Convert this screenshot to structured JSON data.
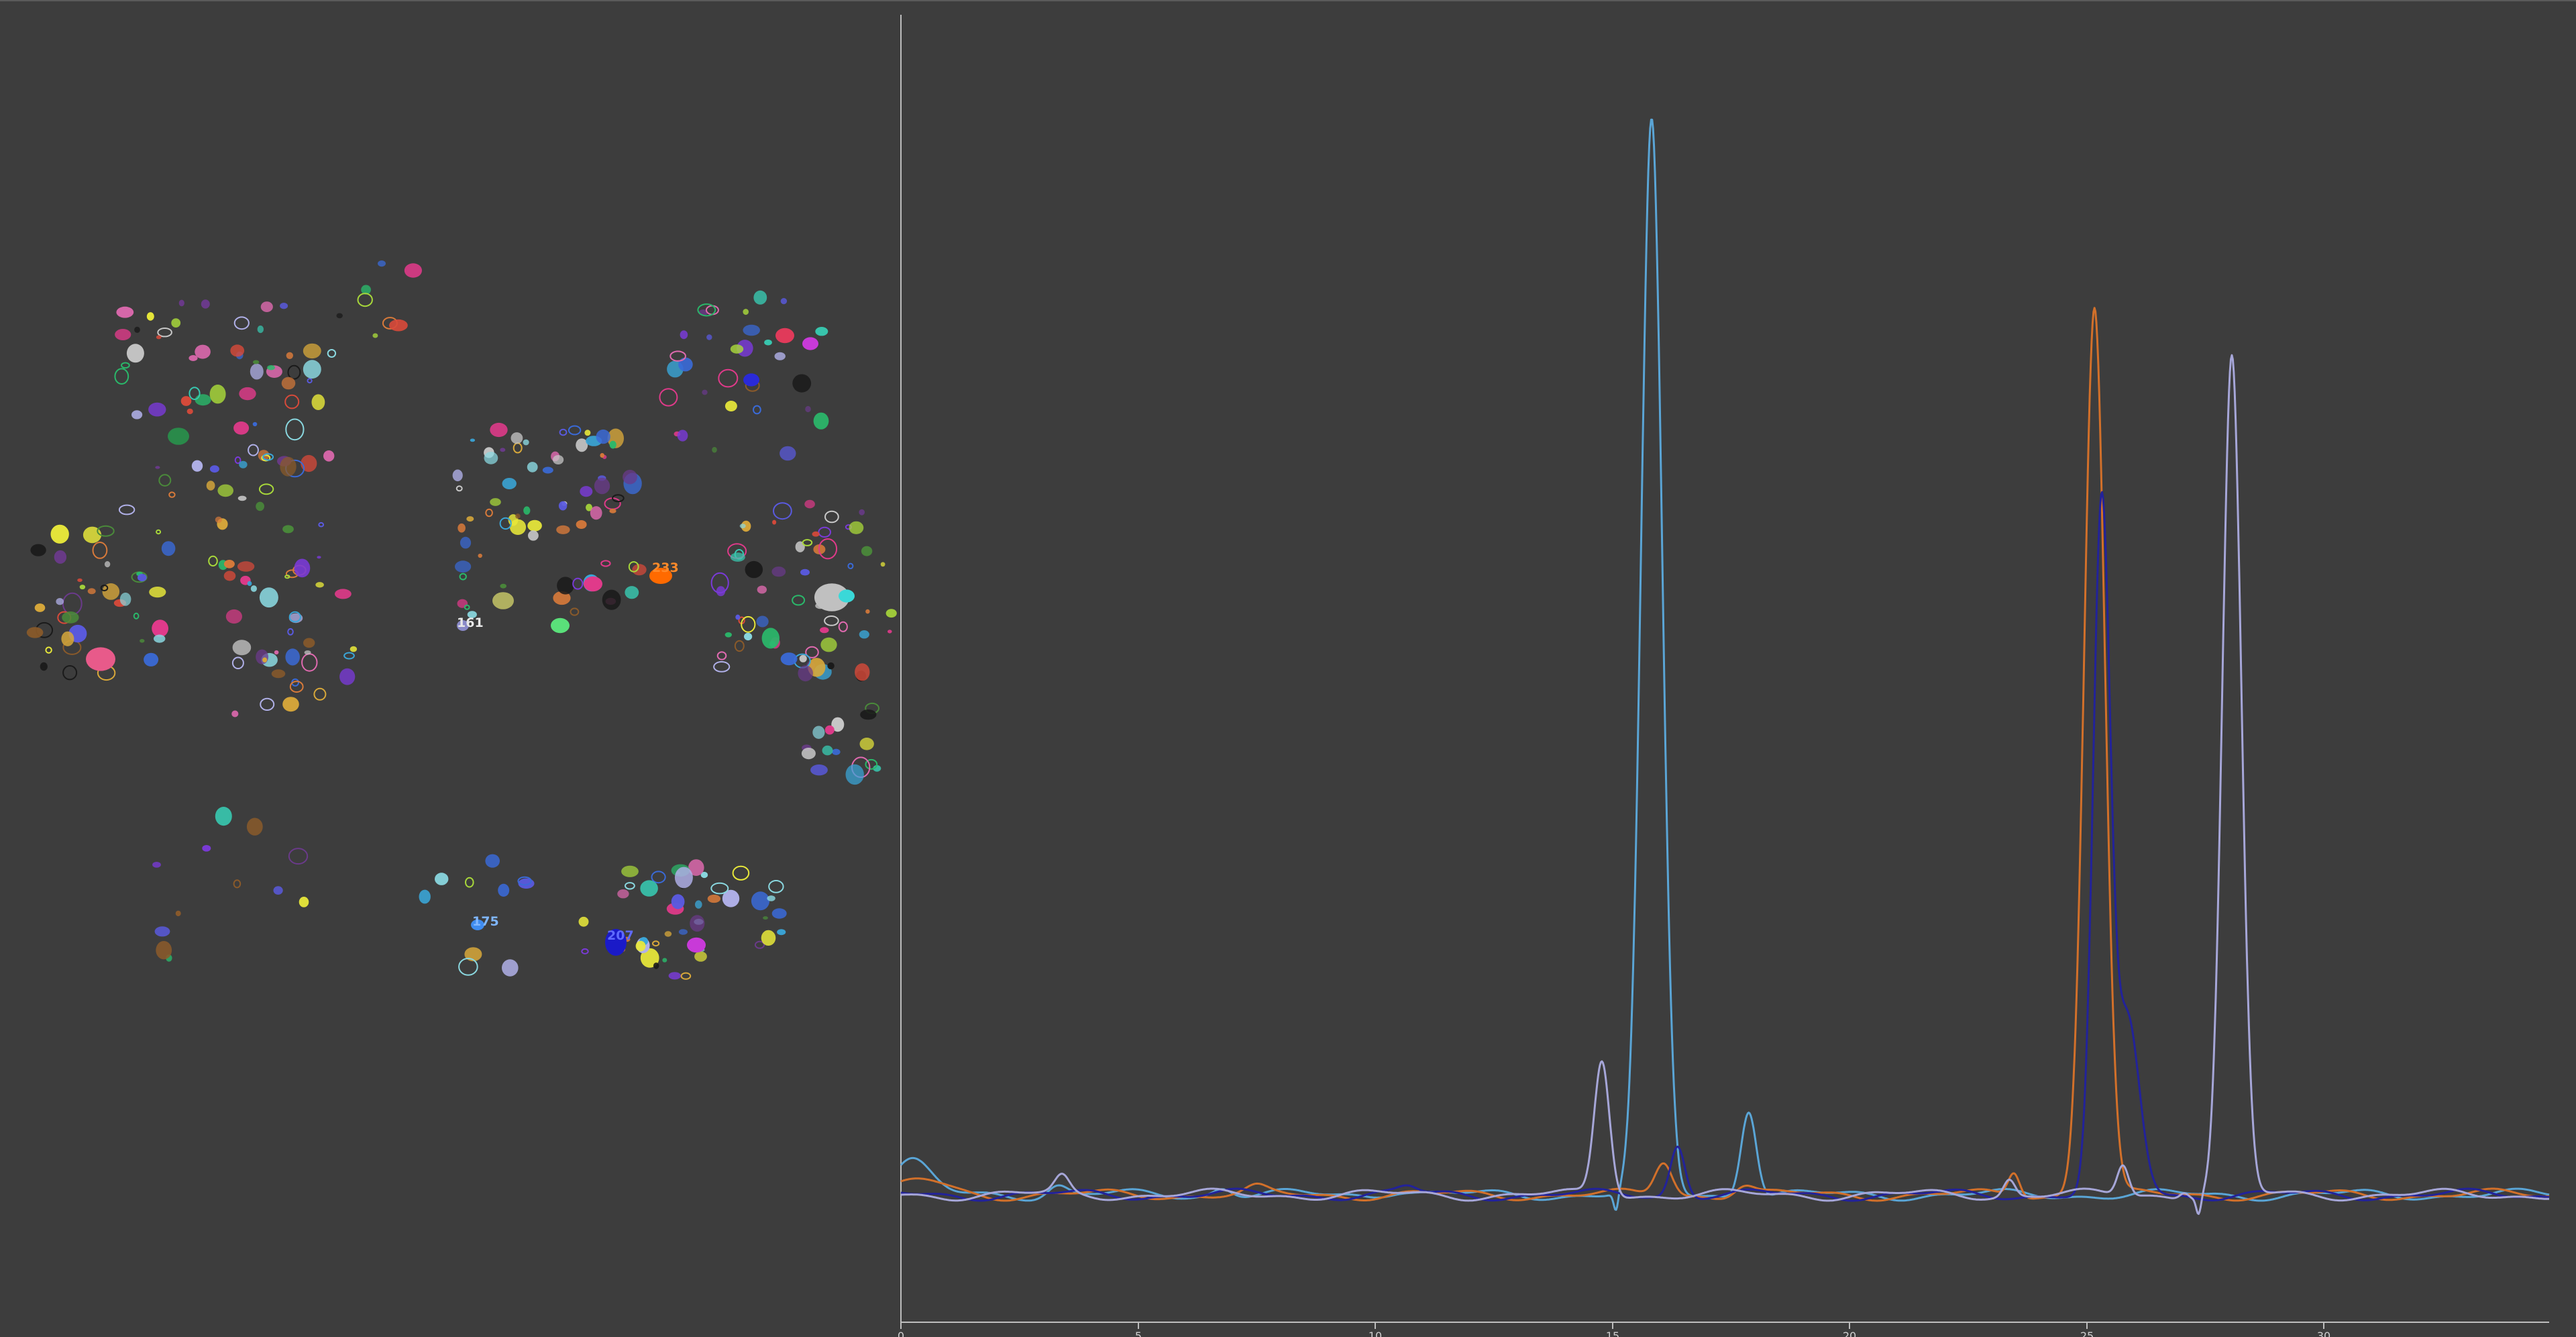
{
  "cluster_map": {
    "labels": [
      {
        "id": "label-233",
        "text": "233",
        "color": "#ff7a1a",
        "fill": "#ff6a00"
      },
      {
        "id": "label-161",
        "text": "161",
        "color": "#e8e8e8",
        "fill": "#9a9ad0"
      },
      {
        "id": "label-175",
        "text": "175",
        "color": "#7fb6ff",
        "fill": "#4a8cff"
      },
      {
        "id": "label-207",
        "text": "207",
        "color": "#5f6aff",
        "fill": "#1c1ccf"
      }
    ]
  },
  "chromatogram": {
    "x_ticks": [
      "0",
      "5",
      "10",
      "15",
      "20",
      "25",
      "30"
    ],
    "xlim": [
      0,
      34.8
    ],
    "grid": false,
    "traces": [
      {
        "name": "light-blue",
        "color": "#5aa5d6"
      },
      {
        "name": "orange",
        "color": "#d2702a"
      },
      {
        "name": "navy",
        "color": "#22229a"
      },
      {
        "name": "lavender",
        "color": "#a6a6d8"
      }
    ]
  },
  "colors": {
    "background": "#3d3d3d",
    "axis": "#bdbdbd"
  }
}
